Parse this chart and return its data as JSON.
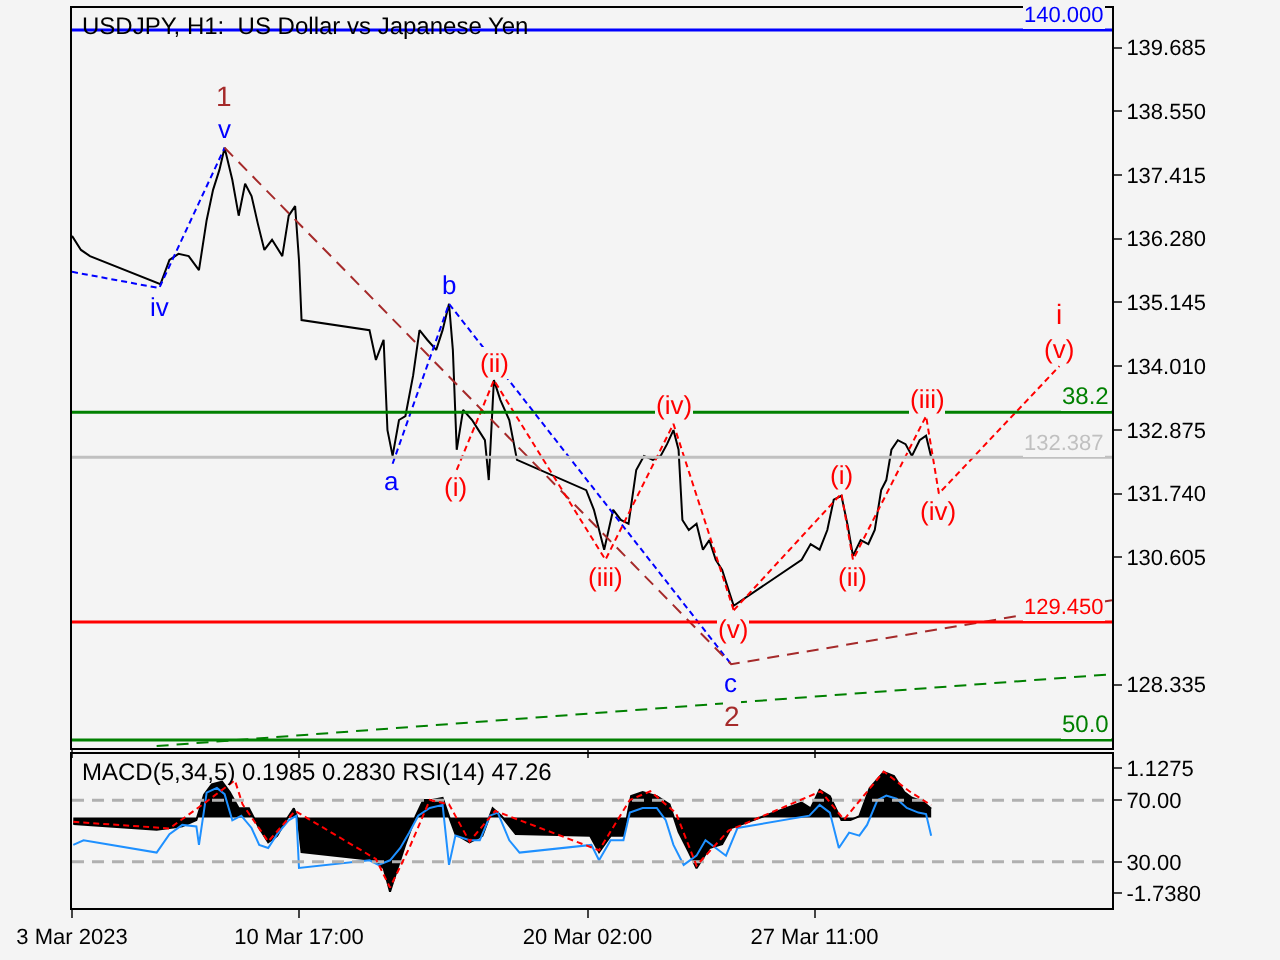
{
  "chart_data": [
    {
      "type": "line",
      "title": "USDJPY, H1:  US Dollar vs Japanese Yen",
      "xlim": [
        "2023-03-03T08:00",
        "2023-04-06T03:00"
      ],
      "xticks": [
        {
          "value": "2023-03-03T08:00",
          "label": null
        },
        {
          "value": "2023-03-10T17:00",
          "label": null
        },
        {
          "value": "2023-03-20T02:00",
          "label": null
        },
        {
          "value": "2023-03-27T11:00",
          "label": null
        }
      ],
      "ylim": [
        127.21,
        140.39
      ],
      "yticks": [
        {
          "value": 139.685,
          "label": "139.685"
        },
        {
          "value": 138.55,
          "label": "138.550"
        },
        {
          "value": 137.415,
          "label": "137.415"
        },
        {
          "value": 136.28,
          "label": "136.280"
        },
        {
          "value": 135.145,
          "label": "135.145"
        },
        {
          "value": 134.01,
          "label": "134.010"
        },
        {
          "value": 132.875,
          "label": "132.875"
        },
        {
          "value": 131.74,
          "label": "131.740"
        },
        {
          "value": 130.605,
          "label": "130.605"
        },
        {
          "value": 128.335,
          "label": "128.335"
        }
      ],
      "tick_labels": "y",
      "grid": false,
      "ref_lines": [
        {
          "axis": "y",
          "value": 140.0,
          "label": "140.000",
          "color": "#0000ff"
        },
        {
          "axis": "y",
          "value": 132.387,
          "label": "132.387",
          "color": "#c0c0c0"
        },
        {
          "axis": "y",
          "value": 129.45,
          "label": "129.450",
          "color": "#ff0000"
        },
        {
          "axis": "y",
          "value": 133.19,
          "color": "#008000"
        },
        {
          "axis": "y",
          "value": 127.35,
          "color": "#008000"
        }
      ],
      "annotations": [
        {
          "text": "1",
          "x": "2023-03-08T07:00",
          "y": 137.9
        },
        {
          "text": "2",
          "x": "2023-03-24T18:00",
          "y": 128.7
        },
        {
          "text": "38.2",
          "x": "2023-04-06T03:00",
          "y": 133.19
        },
        {
          "text": "50.0",
          "x": "2023-04-06T03:00",
          "y": 127.35
        },
        {
          "text": "i",
          "x": "2023-04-04T10:00",
          "y": 134.01
        }
      ],
      "series": [
        {
          "color": "#000000",
          "x": [
            "2023-03-03T08:00",
            "2023-03-03T15:00",
            "2023-03-03T22:00",
            "2023-03-06T05:00",
            "2023-03-06T12:00",
            "2023-03-06T19:00",
            "2023-03-07T03:00",
            "2023-03-07T11:00",
            "2023-03-07T17:00",
            "2023-03-07T22:00",
            "2023-03-08T03:00",
            "2023-03-08T07:00",
            "2023-03-08T13:00",
            "2023-03-08T18:00",
            "2023-03-08T23:00",
            "2023-03-09T04:00",
            "2023-03-09T09:00",
            "2023-03-09T14:00",
            "2023-03-09T20:00",
            "2023-03-10T04:00",
            "2023-03-10T09:00",
            "2023-03-10T14:00",
            "2023-03-10T17:00",
            "2023-03-10T19:00",
            "2023-03-13T00:00",
            "2023-03-13T05:00",
            "2023-03-13T11:00",
            "2023-03-13T14:00",
            "2023-03-13T18:00",
            "2023-03-13T23:00",
            "2023-03-14T04:00",
            "2023-03-14T10:00",
            "2023-03-14T15:00",
            "2023-03-14T21:00",
            "2023-03-15T04:00",
            "2023-03-15T09:00",
            "2023-03-15T14:00",
            "2023-03-15T17:00",
            "2023-03-15T20:00",
            "2023-03-16T01:00",
            "2023-03-16T08:00",
            "2023-03-16T13:00",
            "2023-03-16T18:00",
            "2023-03-16T21:00",
            "2023-03-17T01:00",
            "2023-03-17T06:00",
            "2023-03-17T13:00",
            "2023-03-17T19:00",
            "2023-03-20T01:00",
            "2023-03-20T07:00",
            "2023-03-20T15:00",
            "2023-03-20T22:00",
            "2023-03-21T04:00",
            "2023-03-21T10:00",
            "2023-03-21T16:00",
            "2023-03-21T22:00",
            "2023-03-22T05:00",
            "2023-03-22T11:00",
            "2023-03-22T16:00",
            "2023-03-22T21:00",
            "2023-03-23T01:00",
            "2023-03-23T04:00",
            "2023-03-23T09:00",
            "2023-03-23T15:00",
            "2023-03-23T20:00",
            "2023-03-24T01:00",
            "2023-03-24T06:00",
            "2023-03-24T11:00",
            "2023-03-24T16:00",
            "2023-03-24T20:00",
            "2023-03-27T01:00",
            "2023-03-27T08:00",
            "2023-03-27T15:00",
            "2023-03-27T21:00",
            "2023-03-28T02:00",
            "2023-03-28T08:00",
            "2023-03-28T13:00",
            "2023-03-28T17:00",
            "2023-03-28T23:00",
            "2023-03-29T05:00",
            "2023-03-29T10:00",
            "2023-03-29T15:00",
            "2023-03-29T19:00",
            "2023-03-29T23:00",
            "2023-03-30T04:00",
            "2023-03-30T10:00",
            "2023-03-30T15:00",
            "2023-03-30T21:00",
            "2023-03-31T02:00",
            "2023-03-31T06:00"
          ],
          "values": [
            136.33,
            136.08,
            135.97,
            135.47,
            135.9,
            136.01,
            135.97,
            135.72,
            136.61,
            137.15,
            137.51,
            137.9,
            137.33,
            136.69,
            137.26,
            137.04,
            136.54,
            136.08,
            136.26,
            135.97,
            136.69,
            136.86,
            135.9,
            134.83,
            134.65,
            134.12,
            134.48,
            132.87,
            132.41,
            133.05,
            133.12,
            133.84,
            134.65,
            134.48,
            134.3,
            134.65,
            135.12,
            134.3,
            132.52,
            133.23,
            133.05,
            132.87,
            132.69,
            131.98,
            133.76,
            133.41,
            133.05,
            132.34,
            131.8,
            131.45,
            130.74,
            131.45,
            131.27,
            131.2,
            132.16,
            132.41,
            132.34,
            132.41,
            132.62,
            132.87,
            132.52,
            131.27,
            131.09,
            131.2,
            130.74,
            130.91,
            130.56,
            130.38,
            130.02,
            129.74,
            130.56,
            130.84,
            130.74,
            131.09,
            131.63,
            131.7,
            131.16,
            130.63,
            130.91,
            130.84,
            131.09,
            131.8,
            131.98,
            132.52,
            132.69,
            132.62,
            132.41,
            132.69,
            132.77,
            132.39
          ]
        },
        {
          "color": "#0000ff",
          "line_style": "dotted",
          "x": [
            "2023-03-03T08:00",
            "2023-03-06T04:00",
            "2023-03-08T07:00"
          ],
          "values": [
            135.69,
            135.4,
            137.9
          ],
          "value_labels": [
            null,
            "iv",
            "v"
          ]
        },
        {
          "color": "#0000ff",
          "line_style": "dotted",
          "x": [
            "2023-03-13T18:00",
            "2023-03-15T14:00",
            "2023-03-24T18:00"
          ],
          "values": [
            132.27,
            135.12,
            128.7
          ],
          "value_labels": [
            "a",
            "b",
            "c"
          ]
        },
        {
          "color": "#a52a2a",
          "line_style": "dashed",
          "x": [
            "2023-03-08T07:00",
            "2023-03-24T18:00",
            "2023-04-06T03:00"
          ],
          "values": [
            137.9,
            128.7,
            129.84
          ]
        },
        {
          "color": "#ff0000",
          "line_style": "dotted",
          "x": [
            "2023-03-15T20:00",
            "2023-03-17T01:00",
            "2023-03-20T16:00",
            "2023-03-22T21:00",
            "2023-03-24T20:00"
          ],
          "values": [
            132.16,
            133.76,
            130.56,
            132.98,
            129.66
          ],
          "value_labels": [
            "(i)",
            "(ii)",
            "(iii)",
            "(iv)",
            "(v)"
          ]
        },
        {
          "color": "#ff0000",
          "line_style": "dotted",
          "x": [
            "2023-03-24T20:00",
            "2023-03-28T08:00",
            "2023-03-28T17:00",
            "2023-03-31T02:00",
            "2023-03-31T12:00",
            "2023-04-04T10:00"
          ],
          "values": [
            129.66,
            131.74,
            130.56,
            133.12,
            131.74,
            134.01
          ],
          "value_labels": [
            null,
            "(i)",
            "(ii)",
            "(iii)",
            "(iv)",
            "(v)"
          ]
        },
        {
          "color": "#008000",
          "line_style": "dashed",
          "x": [
            "2023-03-06T02:00",
            "2023-04-06T03:00"
          ],
          "values": [
            127.24,
            128.52
          ]
        }
      ]
    },
    {
      "type": "line",
      "title": "MACD(5,34,5) 0.1985 0.2830 RSI(14) 47.26",
      "xlim": [
        "2023-03-03T08:00",
        "2023-04-06T03:00"
      ],
      "xticks": [
        {
          "value": "2023-03-03T08:00",
          "label": "3 Mar 2023"
        },
        {
          "value": "2023-03-10T17:00",
          "label": "10 Mar 17:00"
        },
        {
          "value": "2023-03-20T02:00",
          "label": "20 Mar 02:00"
        },
        {
          "value": "2023-03-27T11:00",
          "label": "27 Mar 11:00"
        }
      ],
      "ylim": [
        -2.07,
        1.45
      ],
      "yticks": [
        {
          "value": 1.1275,
          "label": "1.1275"
        },
        {
          "value": -1.738,
          "label": "-1.7380"
        }
      ],
      "y2lim": [
        0,
        100
      ],
      "y2ticks": [
        {
          "value": 70,
          "label": "70.00"
        },
        {
          "value": 30,
          "label": "30.00"
        }
      ],
      "ref_lines": [
        {
          "axis": "y2",
          "value": 70,
          "color": "#b0b0b0",
          "line_style": "dashed"
        },
        {
          "axis": "y2",
          "value": 30,
          "color": "#b0b0b0",
          "line_style": "dashed"
        }
      ],
      "series": [
        {
          "type": "area",
          "color": "#000000",
          "x": [
            "2023-03-03T09:00",
            "2023-03-06T02:00",
            "2023-03-06T22:00",
            "2023-03-07T09:00",
            "2023-03-07T15:00",
            "2023-03-07T21:00",
            "2023-03-08T05:00",
            "2023-03-08T11:00",
            "2023-03-08T18:00",
            "2023-03-09T02:00",
            "2023-03-09T10:00",
            "2023-03-09T17:00",
            "2023-03-10T00:00",
            "2023-03-10T07:00",
            "2023-03-10T13:00",
            "2023-03-10T16:00",
            "2023-03-10T19:00",
            "2023-03-13T03:00",
            "2023-03-13T11:00",
            "2023-03-13T16:00",
            "2023-03-13T21:00",
            "2023-03-14T04:00",
            "2023-03-14T12:00",
            "2023-03-14T18:00",
            "2023-03-15T01:00",
            "2023-03-15T09:00",
            "2023-03-15T15:00",
            "2023-03-15T19:00",
            "2023-03-16T06:00",
            "2023-03-16T16:00",
            "2023-03-17T00:00",
            "2023-03-17T07:00",
            "2023-03-17T18:00",
            "2023-03-20T04:00",
            "2023-03-20T11:00",
            "2023-03-20T20:00",
            "2023-03-21T06:00",
            "2023-03-21T12:00",
            "2023-03-21T21:00",
            "2023-03-22T08:00",
            "2023-03-22T18:00",
            "2023-03-23T01:00",
            "2023-03-23T09:00",
            "2023-03-23T15:00",
            "2023-03-24T01:00",
            "2023-03-24T11:00",
            "2023-03-24T18:00",
            "2023-03-27T01:00",
            "2023-03-27T08:00",
            "2023-03-27T15:00",
            "2023-03-27T23:00",
            "2023-03-28T08:00",
            "2023-03-28T15:00",
            "2023-03-28T22:00",
            "2023-03-29T06:00",
            "2023-03-29T17:00",
            "2023-03-30T01:00",
            "2023-03-30T09:00",
            "2023-03-30T15:00",
            "2023-03-30T20:00",
            "2023-03-31T00:00",
            "2023-03-31T06:00"
          ],
          "values": [
            -0.15,
            -0.28,
            -0.2,
            -0.06,
            0.52,
            0.76,
            0.82,
            0.58,
            0.21,
            0.21,
            -0.24,
            -0.57,
            -0.42,
            -0.06,
            0.21,
            -0.02,
            -0.79,
            -0.97,
            -1.16,
            -1.7,
            -1.24,
            -0.61,
            0.03,
            0.4,
            0.4,
            0.45,
            -0.06,
            -0.38,
            -0.57,
            -0.42,
            0.21,
            0.03,
            -0.38,
            -0.42,
            -0.79,
            -0.42,
            -0.42,
            0.49,
            0.58,
            0.49,
            0.3,
            -0.33,
            -0.79,
            -1.16,
            -0.7,
            -0.61,
            -0.24,
            0.34,
            0.21,
            0.63,
            0.49,
            -0.06,
            -0.06,
            0.03,
            0.67,
            1.04,
            0.95,
            0.58,
            0.45,
            0.4,
            0.35,
            0.2
          ]
        },
        {
          "color": "#ff0000",
          "line_style": "dotted",
          "x": [
            "2023-03-03T09:00",
            "2023-03-06T12:00",
            "2023-03-07T14:00",
            "2023-03-08T15:00",
            "2023-03-08T21:00",
            "2023-03-09T17:00",
            "2023-03-10T14:00",
            "2023-03-13T05:00",
            "2023-03-13T16:00",
            "2023-03-14T07:00",
            "2023-03-14T23:00",
            "2023-03-15T14:00",
            "2023-03-16T06:00",
            "2023-03-17T02:00",
            "2023-03-20T11:00",
            "2023-03-21T11:00",
            "2023-03-22T03:00",
            "2023-03-22T23:00",
            "2023-03-23T15:00",
            "2023-03-24T16:00",
            "2023-03-27T16:00",
            "2023-03-28T10:00",
            "2023-03-29T17:00",
            "2023-03-30T13:00",
            "2023-03-31T06:00"
          ],
          "values": [
            -0.1,
            -0.25,
            0.3,
            0.85,
            0.3,
            -0.55,
            0.15,
            -0.95,
            -1.6,
            -0.7,
            0.4,
            0.3,
            -0.55,
            0.15,
            -0.75,
            0.4,
            0.6,
            0.1,
            -1.1,
            -0.3,
            0.6,
            -0.05,
            1.05,
            0.6,
            0.28
          ]
        },
        {
          "axis": "y2",
          "color": "#1e90ff",
          "x": [
            "2023-03-03T09:00",
            "2023-03-03T17:00",
            "2023-03-06T02:00",
            "2023-03-06T12:00",
            "2023-03-06T22:00",
            "2023-03-07T09:00",
            "2023-03-07T11:00",
            "2023-03-07T17:00",
            "2023-03-08T01:00",
            "2023-03-08T07:00",
            "2023-03-08T13:00",
            "2023-03-08T20:00",
            "2023-03-09T04:00",
            "2023-03-09T10:00",
            "2023-03-09T17:00",
            "2023-03-10T00:00",
            "2023-03-10T09:00",
            "2023-03-10T15:00",
            "2023-03-10T17:00",
            "2023-03-13T00:00",
            "2023-03-13T07:00",
            "2023-03-13T16:00",
            "2023-03-14T00:00",
            "2023-03-14T07:00",
            "2023-03-14T14:00",
            "2023-03-14T23:00",
            "2023-03-15T09:00",
            "2023-03-15T14:00",
            "2023-03-15T19:00",
            "2023-03-16T06:00",
            "2023-03-16T14:00",
            "2023-03-16T22:00",
            "2023-03-17T04:00",
            "2023-03-17T13:00",
            "2023-03-17T21:00",
            "2023-03-20T05:00",
            "2023-03-20T11:00",
            "2023-03-20T20:00",
            "2023-03-21T06:00",
            "2023-03-21T11:00",
            "2023-03-21T21:00",
            "2023-03-22T08:00",
            "2023-03-22T15:00",
            "2023-03-22T21:00",
            "2023-03-23T05:00",
            "2023-03-23T15:00",
            "2023-03-23T22:00",
            "2023-03-24T06:00",
            "2023-03-24T14:00",
            "2023-03-24T23:00",
            "2023-03-27T07:00",
            "2023-03-27T15:00",
            "2023-03-27T23:00",
            "2023-03-28T06:00",
            "2023-03-28T14:00",
            "2023-03-28T22:00",
            "2023-03-29T04:00",
            "2023-03-29T12:00",
            "2023-03-29T19:00",
            "2023-03-30T03:00",
            "2023-03-30T11:00",
            "2023-03-30T20:00",
            "2023-03-31T02:00",
            "2023-03-31T06:00"
          ],
          "values": [
            41,
            44,
            36,
            48,
            54,
            53,
            41,
            75,
            78,
            74,
            57,
            60,
            52,
            41,
            39,
            48,
            57,
            60,
            26,
            31,
            28,
            31,
            39,
            49,
            60,
            65,
            67,
            28,
            47,
            44,
            44,
            60,
            62,
            44,
            36,
            41,
            31,
            44,
            44,
            62,
            65,
            65,
            57,
            41,
            28,
            34,
            44,
            39,
            34,
            52,
            60,
            67,
            62,
            39,
            49,
            47,
            54,
            70,
            73,
            71,
            65,
            62,
            61,
            47
          ]
        }
      ]
    }
  ]
}
